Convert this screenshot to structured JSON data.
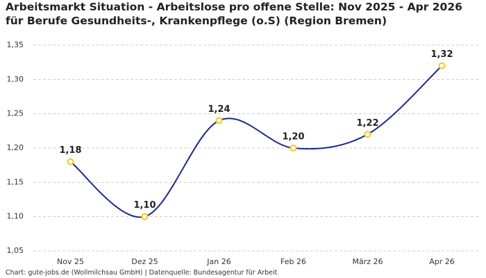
{
  "chart_data": {
    "type": "line",
    "title": "Arbeitsmarkt Situation - Arbeitslose pro offene Stelle: Nov 2025 - Apr 2026 für Berufe Gesundheits-, Krankenpflege (o.S) (Region Bremen)",
    "source": "Chart: gute-jobs.de (Wollmilchsau GmbH) | Datenquelle: Bundesagentur für Arbeit",
    "categories": [
      "Nov 25",
      "Dez 25",
      "Jan 26",
      "Feb 26",
      "März 26",
      "Apr 26"
    ],
    "values": [
      1.18,
      1.1,
      1.24,
      1.2,
      1.22,
      1.32
    ],
    "value_labels": [
      "1,18",
      "1,10",
      "1,24",
      "1,20",
      "1,22",
      "1,32"
    ],
    "color": "#1f2a85",
    "marker_color": "#f2c81e",
    "ylim": [
      1.05,
      1.35
    ],
    "yticks": [
      {
        "value": 1.05,
        "label": "1,05"
      },
      {
        "value": 1.1,
        "label": "1,10"
      },
      {
        "value": 1.15,
        "label": "1,15"
      },
      {
        "value": 1.2,
        "label": "1,20"
      },
      {
        "value": 1.25,
        "label": "1,25"
      },
      {
        "value": 1.3,
        "label": "1,30"
      },
      {
        "value": 1.35,
        "label": "1,35"
      }
    ],
    "grid": true
  }
}
